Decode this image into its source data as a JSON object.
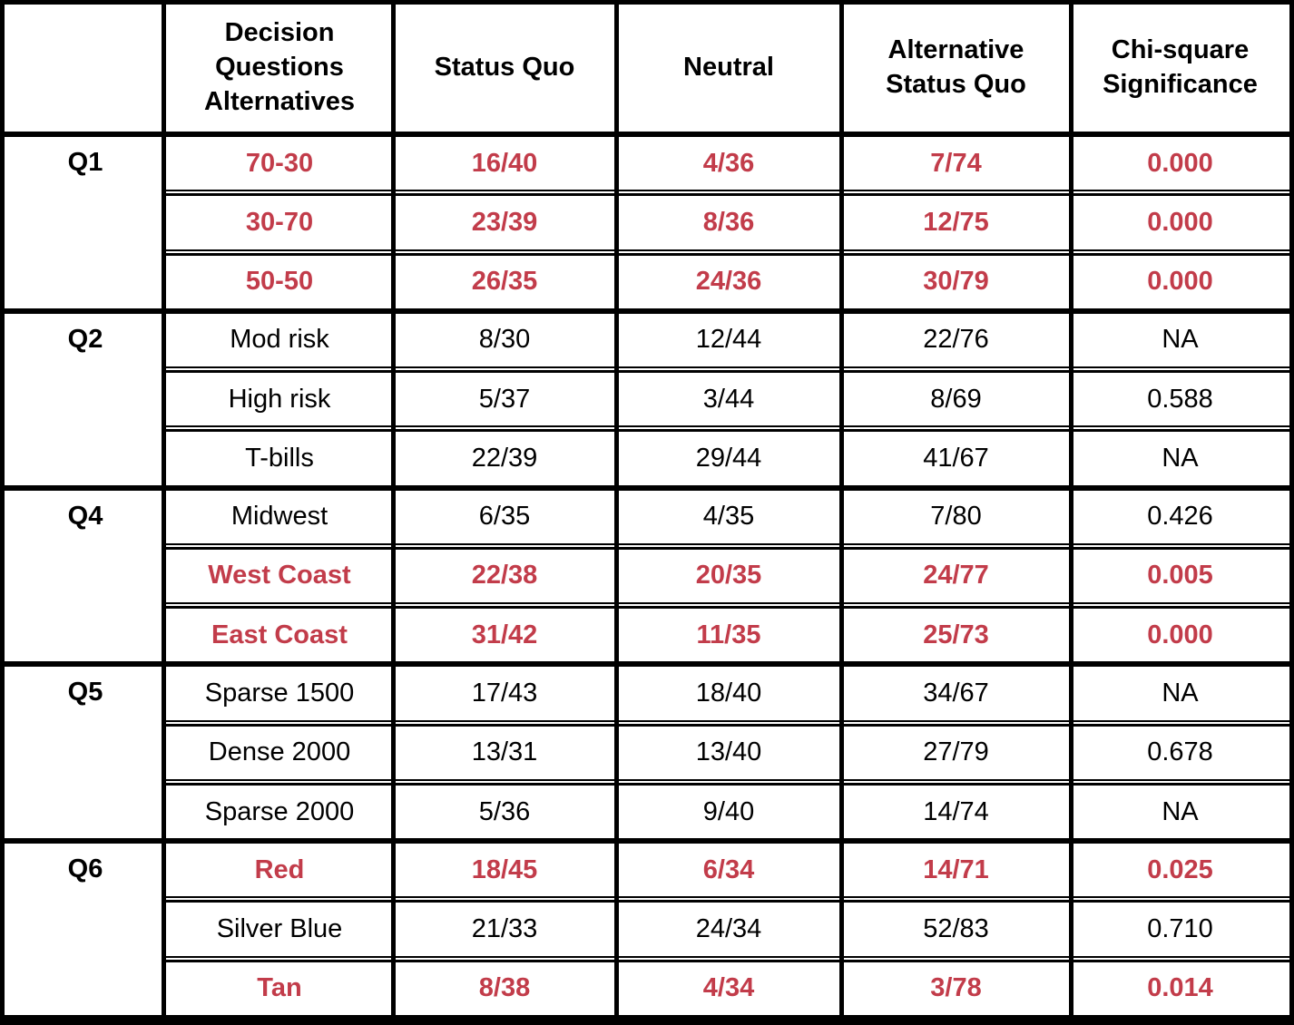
{
  "colors": {
    "highlight_text": "#C23C4A",
    "text": "#000000",
    "grid": "#000000",
    "background": "#FFFFFF"
  },
  "chart_data": {
    "type": "table",
    "columns": [
      "",
      "Decision Questions Alternatives",
      "Status Quo",
      "Neutral",
      "Alternative Status Quo",
      "Chi-square Significance"
    ],
    "groups": [
      {
        "question": "Q1",
        "rows": [
          {
            "alternative": "70-30",
            "status_quo": "16/40",
            "neutral": "4/36",
            "alternative_status_quo": "7/74",
            "chi_square": "0.000",
            "significant": true
          },
          {
            "alternative": "30-70",
            "status_quo": "23/39",
            "neutral": "8/36",
            "alternative_status_quo": "12/75",
            "chi_square": "0.000",
            "significant": true
          },
          {
            "alternative": "50-50",
            "status_quo": "26/35",
            "neutral": "24/36",
            "alternative_status_quo": "30/79",
            "chi_square": "0.000",
            "significant": true
          }
        ]
      },
      {
        "question": "Q2",
        "rows": [
          {
            "alternative": "Mod risk",
            "status_quo": "8/30",
            "neutral": "12/44",
            "alternative_status_quo": "22/76",
            "chi_square": "NA",
            "significant": false
          },
          {
            "alternative": "High risk",
            "status_quo": "5/37",
            "neutral": "3/44",
            "alternative_status_quo": "8/69",
            "chi_square": "0.588",
            "significant": false
          },
          {
            "alternative": "T-bills",
            "status_quo": "22/39",
            "neutral": "29/44",
            "alternative_status_quo": "41/67",
            "chi_square": "NA",
            "significant": false
          }
        ]
      },
      {
        "question": "Q4",
        "rows": [
          {
            "alternative": "Midwest",
            "status_quo": "6/35",
            "neutral": "4/35",
            "alternative_status_quo": "7/80",
            "chi_square": "0.426",
            "significant": false
          },
          {
            "alternative": "West Coast",
            "status_quo": "22/38",
            "neutral": "20/35",
            "alternative_status_quo": "24/77",
            "chi_square": "0.005",
            "significant": true
          },
          {
            "alternative": "East Coast",
            "status_quo": "31/42",
            "neutral": "11/35",
            "alternative_status_quo": "25/73",
            "chi_square": "0.000",
            "significant": true
          }
        ]
      },
      {
        "question": "Q5",
        "rows": [
          {
            "alternative": "Sparse 1500",
            "status_quo": "17/43",
            "neutral": "18/40",
            "alternative_status_quo": "34/67",
            "chi_square": "NA",
            "significant": false
          },
          {
            "alternative": "Dense 2000",
            "status_quo": "13/31",
            "neutral": "13/40",
            "alternative_status_quo": "27/79",
            "chi_square": "0.678",
            "significant": false
          },
          {
            "alternative": "Sparse 2000",
            "status_quo": "5/36",
            "neutral": "9/40",
            "alternative_status_quo": "14/74",
            "chi_square": "NA",
            "significant": false
          }
        ]
      },
      {
        "question": "Q6",
        "rows": [
          {
            "alternative": "Red",
            "status_quo": "18/45",
            "neutral": "6/34",
            "alternative_status_quo": "14/71",
            "chi_square": "0.025",
            "significant": true
          },
          {
            "alternative": "Silver Blue",
            "status_quo": "21/33",
            "neutral": "24/34",
            "alternative_status_quo": "52/83",
            "chi_square": "0.710",
            "significant": false
          },
          {
            "alternative": "Tan",
            "status_quo": "8/38",
            "neutral": "4/34",
            "alternative_status_quo": "3/78",
            "chi_square": "0.014",
            "significant": true
          }
        ]
      }
    ]
  }
}
